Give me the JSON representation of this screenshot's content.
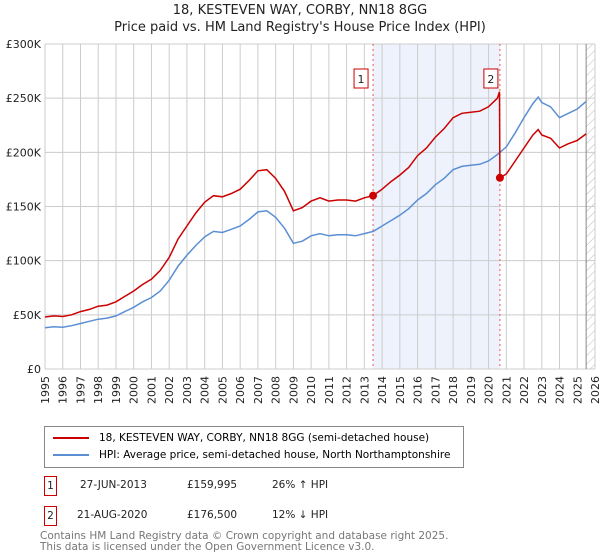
{
  "header": {
    "title": "18, KESTEVEN WAY, CORBY, NN18 8GG",
    "subtitle": "Price paid vs. HM Land Registry's House Price Index (HPI)"
  },
  "chart_data": {
    "type": "line",
    "title": "18, KESTEVEN WAY, CORBY, NN18 8GG",
    "subtitle": "Price paid vs. HM Land Registry's House Price Index (HPI)",
    "xlim": [
      1995,
      2026
    ],
    "ylim": [
      0,
      300000
    ],
    "x_ticks": [
      "1995",
      "1996",
      "1997",
      "1998",
      "1999",
      "2000",
      "2001",
      "2002",
      "2003",
      "2004",
      "2005",
      "2006",
      "2007",
      "2008",
      "2009",
      "2010",
      "2011",
      "2012",
      "2013",
      "2014",
      "2015",
      "2016",
      "2017",
      "2018",
      "2019",
      "2020",
      "2021",
      "2022",
      "2023",
      "2024",
      "2025",
      "2026"
    ],
    "y_ticks": [
      {
        "v": 0,
        "label": "£0"
      },
      {
        "v": 50000,
        "label": "£50K"
      },
      {
        "v": 100000,
        "label": "£100K"
      },
      {
        "v": 150000,
        "label": "£150K"
      },
      {
        "v": 200000,
        "label": "£200K"
      },
      {
        "v": 250000,
        "label": "£250K"
      },
      {
        "v": 300000,
        "label": "£300K"
      }
    ],
    "grid": true,
    "shaded_period": [
      2013.49,
      2020.64
    ],
    "forecast_hatch_from": 2025.5,
    "series": [
      {
        "name": "18, KESTEVEN WAY, CORBY, NN18 8GG (semi-detached house)",
        "color": "#cc0000",
        "x": [
          1995,
          1995.5,
          1996,
          1996.5,
          1997,
          1997.5,
          1998,
          1998.5,
          1999,
          1999.5,
          2000,
          2000.5,
          2001,
          2001.5,
          2002,
          2002.5,
          2003,
          2003.5,
          2004,
          2004.5,
          2005,
          2005.5,
          2006,
          2006.5,
          2007,
          2007.5,
          2008,
          2008.5,
          2009,
          2009.5,
          2010,
          2010.5,
          2011,
          2011.5,
          2012,
          2012.5,
          2013,
          2013.49,
          2014,
          2014.5,
          2015,
          2015.5,
          2016,
          2016.5,
          2017,
          2017.5,
          2018,
          2018.5,
          2019,
          2019.5,
          2020,
          2020.5,
          2020.62,
          2020.64,
          2021,
          2021.5,
          2022,
          2022.5,
          2022.8,
          2023,
          2023.5,
          2024,
          2024.5,
          2025,
          2025.5
        ],
        "values": [
          48000,
          49000,
          48500,
          50000,
          53000,
          55000,
          58000,
          59000,
          62000,
          67000,
          72000,
          78000,
          83000,
          91000,
          103000,
          120000,
          132000,
          144000,
          154000,
          160000,
          159000,
          162000,
          166000,
          174000,
          183000,
          184000,
          176000,
          164000,
          146000,
          149000,
          155000,
          158000,
          155000,
          156000,
          156000,
          155000,
          158000,
          159995,
          166000,
          173000,
          179000,
          186000,
          197000,
          204000,
          214000,
          222000,
          232000,
          236000,
          237000,
          238000,
          242000,
          250000,
          256000,
          176500,
          180000,
          192000,
          204000,
          216000,
          221000,
          216000,
          213000,
          204000,
          208000,
          211000,
          217000
        ]
      },
      {
        "name": "HPI: Average price, semi-detached house, North Northamptonshire",
        "color": "#5b8fd4",
        "x": [
          1995,
          1995.5,
          1996,
          1996.5,
          1997,
          1997.5,
          1998,
          1998.5,
          1999,
          1999.5,
          2000,
          2000.5,
          2001,
          2001.5,
          2002,
          2002.5,
          2003,
          2003.5,
          2004,
          2004.5,
          2005,
          2005.5,
          2006,
          2006.5,
          2007,
          2007.5,
          2008,
          2008.5,
          2009,
          2009.5,
          2010,
          2010.5,
          2011,
          2011.5,
          2012,
          2012.5,
          2013,
          2013.5,
          2014,
          2014.5,
          2015,
          2015.5,
          2016,
          2016.5,
          2017,
          2017.5,
          2018,
          2018.5,
          2019,
          2019.5,
          2020,
          2020.5,
          2021,
          2021.5,
          2022,
          2022.5,
          2022.8,
          2023,
          2023.5,
          2024,
          2024.5,
          2025,
          2025.5
        ],
        "values": [
          38000,
          39000,
          38500,
          40000,
          42000,
          44000,
          46000,
          47000,
          49000,
          53000,
          57000,
          62000,
          66000,
          72000,
          82000,
          95000,
          105000,
          114000,
          122000,
          127000,
          126000,
          129000,
          132000,
          138000,
          145000,
          146000,
          140000,
          130000,
          116000,
          118000,
          123000,
          125000,
          123000,
          124000,
          124000,
          123000,
          125000,
          127000,
          132000,
          137000,
          142000,
          148000,
          156000,
          162000,
          170000,
          176000,
          184000,
          187000,
          188000,
          189000,
          192000,
          198000,
          205000,
          218000,
          232000,
          245000,
          251000,
          246000,
          242000,
          232000,
          236000,
          240000,
          247000
        ]
      }
    ],
    "sales": [
      {
        "id": "1",
        "x": 2013.49,
        "value": 159995,
        "date": "27-JUN-2013",
        "price": "£159,995",
        "hpi": "26% ↑ HPI"
      },
      {
        "id": "2",
        "x": 2020.64,
        "value": 176500,
        "date": "21-AUG-2020",
        "price": "£176,500",
        "hpi": "12% ↓ HPI"
      }
    ]
  },
  "legend": {
    "red": "18, KESTEVEN WAY, CORBY, NN18 8GG (semi-detached house)",
    "blue": "HPI: Average price, semi-detached house, North Northamptonshire"
  },
  "footer": {
    "line1": "Contains HM Land Registry data © Crown copyright and database right 2025.",
    "line2": "This data is licensed under the Open Government Licence v3.0."
  }
}
